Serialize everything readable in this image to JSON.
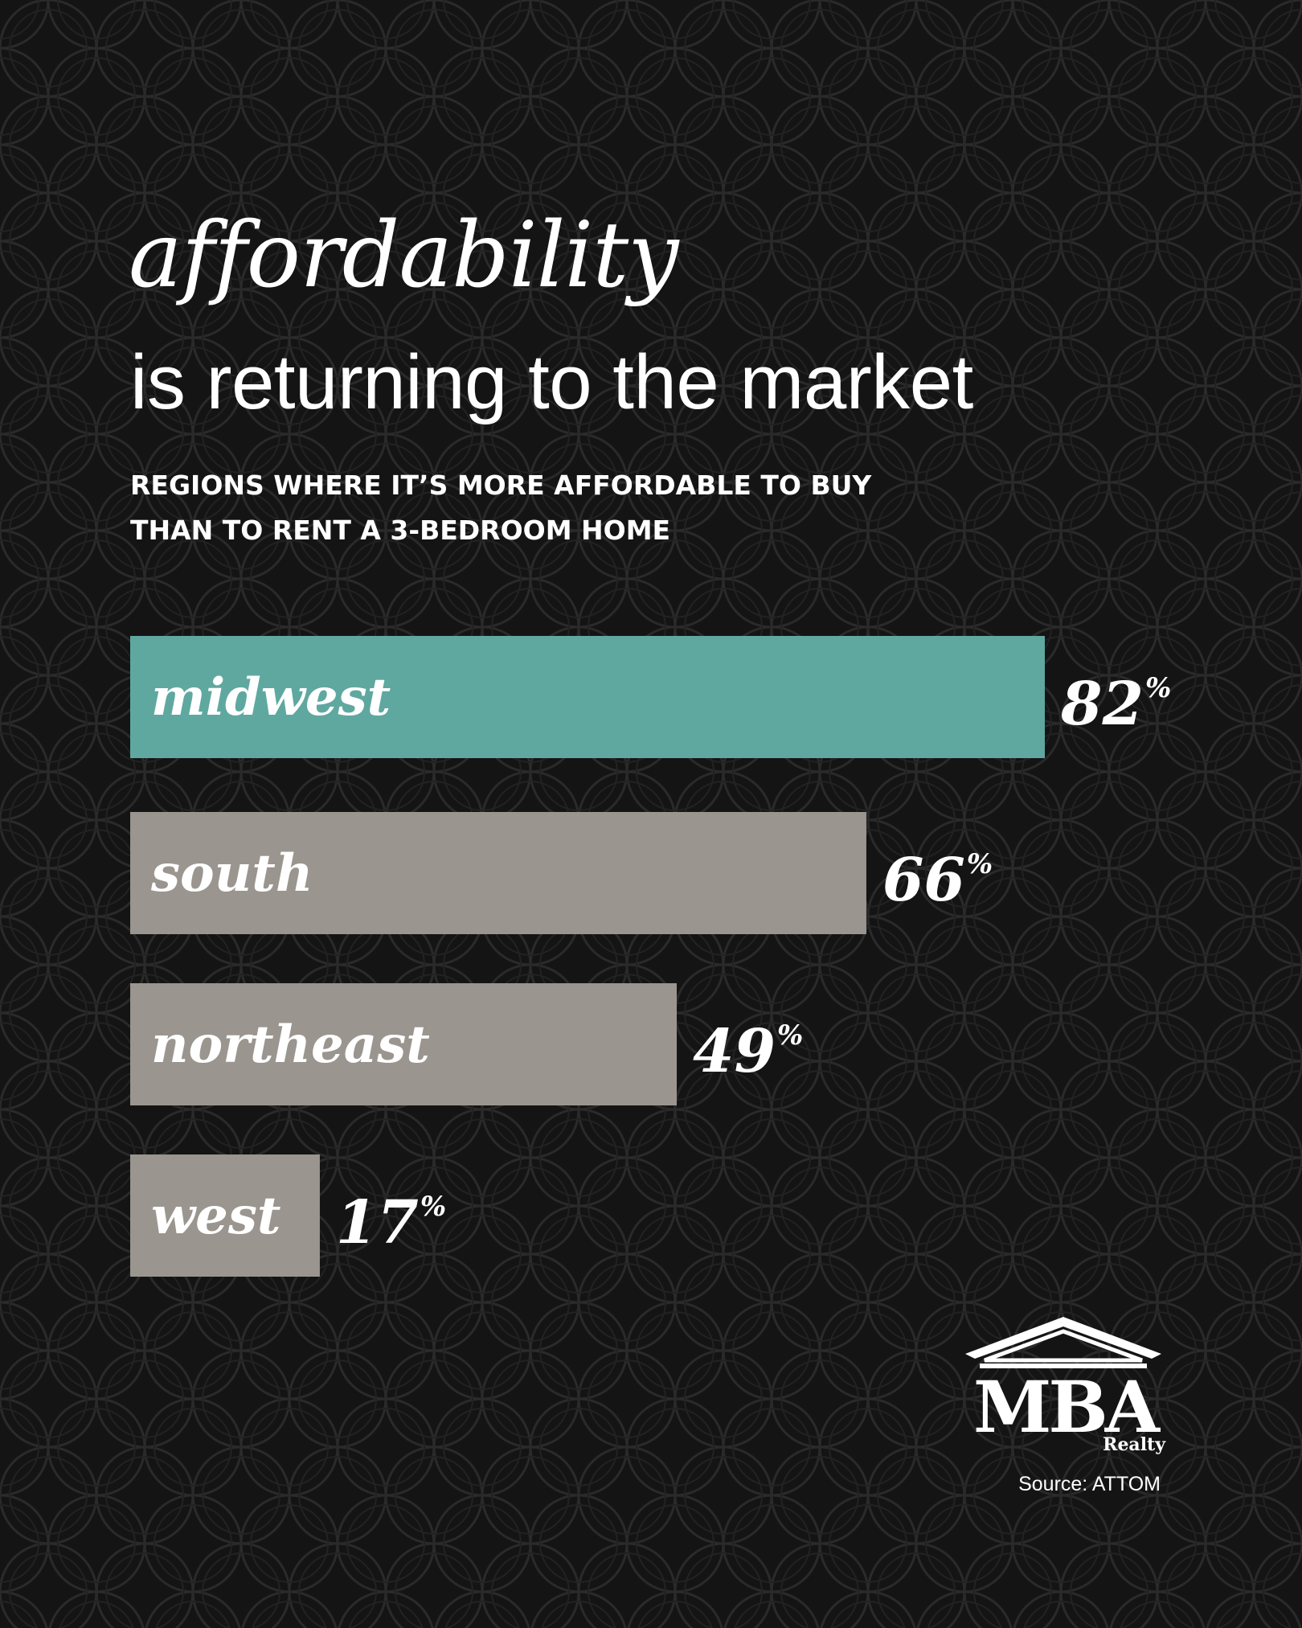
{
  "colors": {
    "background": "#141414",
    "highlight_bar": "#5fa8a0",
    "default_bar": "#9a958f",
    "text": "#ffffff"
  },
  "title": {
    "line1": "affordability",
    "line2": "is returning to the market"
  },
  "subtitle": {
    "line1": "REGIONS WHERE IT’S MORE AFFORDABLE TO BUY",
    "line2": "THAN TO RENT A 3-BEDROOM HOME"
  },
  "chart_data": {
    "type": "bar",
    "orientation": "horizontal",
    "categories": [
      "midwest",
      "south",
      "northeast",
      "west"
    ],
    "values": [
      82,
      66,
      49,
      17
    ],
    "unit": "%",
    "highlight_index": 0,
    "xlim": [
      0,
      100
    ],
    "grid": false,
    "legend": "none"
  },
  "logo": {
    "name": "MBA",
    "sub": "Realty",
    "icon": "house-roof-icon"
  },
  "source": "Source: ATTOM"
}
